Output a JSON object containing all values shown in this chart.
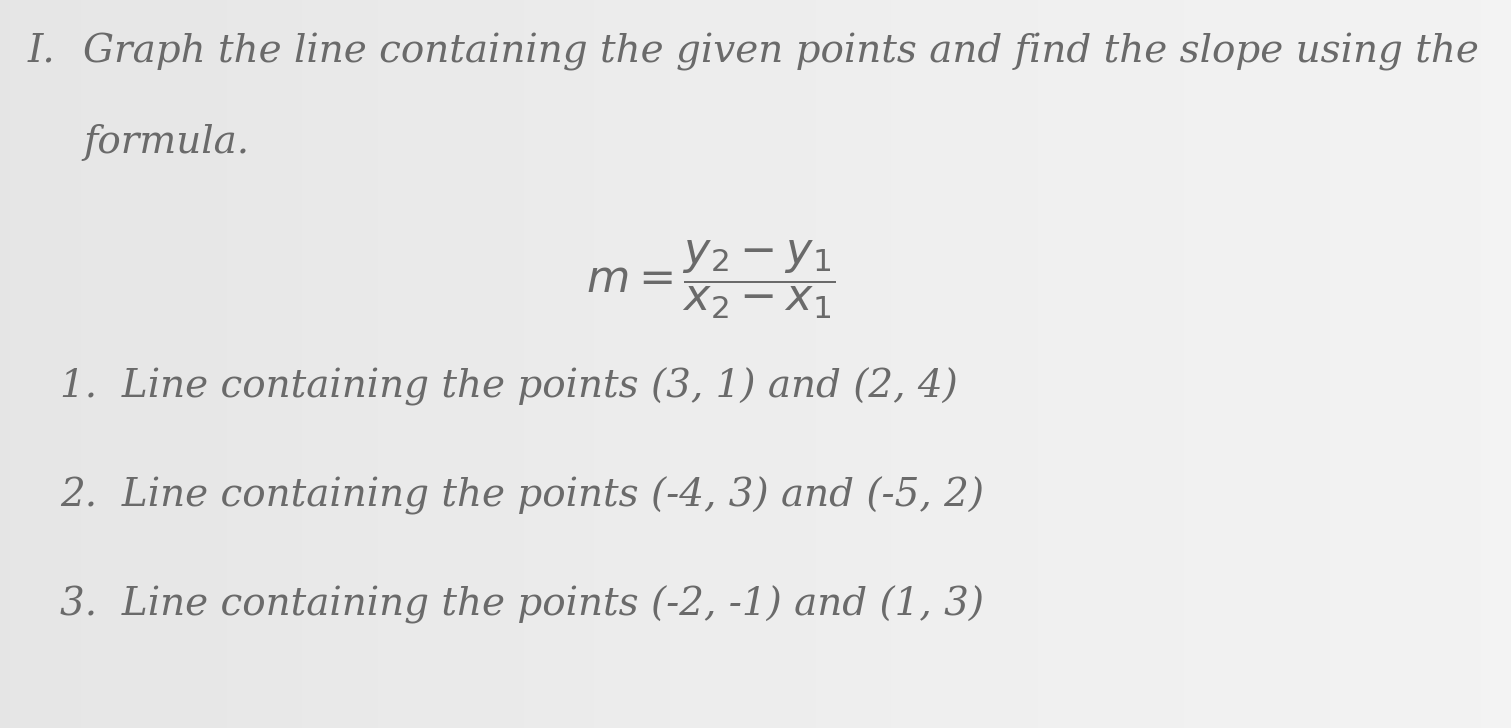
{
  "fig_width": 15.11,
  "fig_height": 7.28,
  "background_color_edge": "#b8b8b8",
  "background_color_center": "#d8d8d8",
  "text_color": "#6a6a6a",
  "header_roman": "I.",
  "header_line1": "Graph the line containing the given points and find the slope using the",
  "header_line2": "formula.",
  "formula_latex": "$m = \\dfrac{y_2 - y_1}{x_2 - x_1}$",
  "items": [
    "1.  Line containing the points (3, 1) and (2, 4)",
    "2.  Line containing the points (-4, 3) and (-5, 2)",
    "3.  Line containing the points (-2, -1) and (1, 3)"
  ],
  "header_fontsize": 28,
  "item_fontsize": 28,
  "formula_fontsize": 32,
  "roman_fontsize": 28
}
